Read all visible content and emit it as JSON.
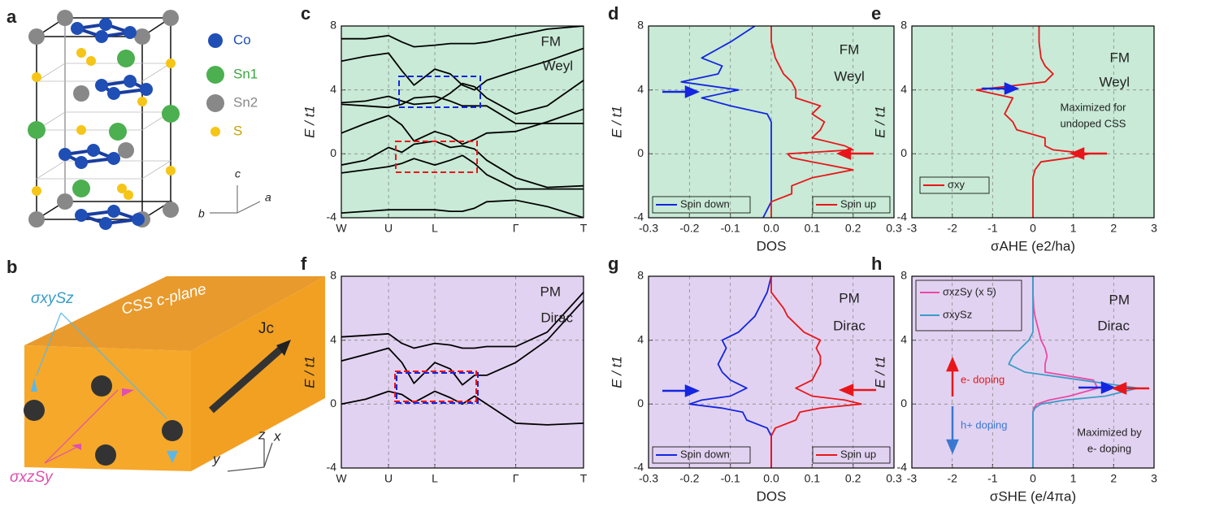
{
  "chart_data": [
    {
      "type": "line",
      "panel": "c",
      "ylabel": "E / t1",
      "background": "#c8ead6",
      "grid": true,
      "xlim": [
        0,
        1
      ],
      "xticks": [
        {
          "value": 0,
          "label": "W"
        },
        {
          "value": 0.195,
          "label": "U"
        },
        {
          "value": 0.386,
          "label": "L"
        },
        {
          "value": 0.72,
          "label": "Γ"
        },
        {
          "value": 1,
          "label": "T"
        }
      ],
      "ylim": [
        -4,
        8
      ],
      "yticks": [
        -4,
        0,
        4,
        8
      ],
      "annotations": [
        "FM",
        "Weyl"
      ],
      "x": [
        0,
        0.1,
        0.195,
        0.25,
        0.3,
        0.386,
        0.45,
        0.5,
        0.55,
        0.6,
        0.72,
        0.85,
        1
      ],
      "series": [
        {
          "color": "#000",
          "values": [
            7.2,
            7.2,
            7.4,
            7.0,
            6.7,
            6.8,
            6.9,
            6.9,
            6.9,
            7.0,
            7.4,
            7.8,
            8.0
          ]
        },
        {
          "color": "#000",
          "values": [
            5.8,
            6.1,
            6.3,
            5.2,
            4.3,
            5.3,
            5.0,
            4.3,
            4.0,
            4.6,
            5.2,
            5.8,
            6.6
          ]
        },
        {
          "color": "#000",
          "values": [
            3.2,
            3.3,
            3.6,
            3.3,
            3.1,
            3.2,
            3.8,
            4.4,
            4.2,
            3.5,
            2.5,
            3.0,
            4.6
          ]
        },
        {
          "color": "#000",
          "values": [
            3.1,
            3.0,
            2.9,
            3.1,
            3.5,
            3.6,
            3.3,
            3.0,
            3.0,
            3.0,
            1.9,
            1.9,
            1.9
          ]
        },
        {
          "color": "#000",
          "values": [
            1.3,
            1.9,
            2.4,
            1.8,
            0.8,
            1.4,
            1.1,
            0.6,
            0.9,
            1.3,
            1.4,
            2.0,
            2.8
          ]
        },
        {
          "color": "#000",
          "values": [
            -0.7,
            -0.4,
            0.4,
            0.1,
            0.6,
            0.8,
            0.4,
            0.5,
            0.3,
            -0.4,
            -1.5,
            -2.1,
            -2.0
          ]
        },
        {
          "color": "#000",
          "values": [
            -1.2,
            -1.0,
            -0.8,
            -0.6,
            -0.3,
            -0.7,
            -0.4,
            -0.1,
            -0.6,
            -1.3,
            -2.2,
            -2.2,
            -2.2
          ]
        },
        {
          "color": "#000",
          "values": [
            -3.7,
            -3.6,
            -3.5,
            -3.5,
            -3.5,
            -3.5,
            -3.6,
            -3.6,
            -3.4,
            -3.0,
            -2.9,
            -3.3,
            -4.0
          ]
        }
      ]
    },
    {
      "type": "line",
      "panel": "d",
      "xlabel": "DOS",
      "ylabel": "E / t1",
      "background": "#c8ead6",
      "grid": true,
      "legend": "bottom",
      "xlim": [
        -0.3,
        0.3
      ],
      "xticks": [
        -0.3,
        -0.2,
        -0.1,
        {
          "value": 0,
          "label": "0.0"
        },
        0.1,
        0.2,
        0.3
      ],
      "ylim": [
        -4,
        8
      ],
      "yticks": [
        -4,
        0,
        4,
        8
      ],
      "annotations": [
        "FM",
        "Weyl"
      ],
      "y": [
        -4,
        -3,
        -2.5,
        -2,
        -1.5,
        -1,
        -0.5,
        -0.25,
        0,
        0.25,
        0.5,
        1,
        1.5,
        2,
        2.5,
        3,
        3.5,
        4,
        4.5,
        5,
        5.5,
        6,
        7,
        8
      ],
      "series": [
        {
          "name": "Spin down",
          "color": "#1426e0",
          "values": [
            -0.02,
            0,
            0,
            0,
            0,
            0,
            0,
            0,
            0,
            0,
            0,
            0,
            0,
            0,
            -0.01,
            -0.1,
            -0.17,
            -0.08,
            -0.22,
            -0.13,
            -0.12,
            -0.17,
            -0.1,
            -0.04
          ]
        },
        {
          "name": "Spin up",
          "color": "#e8161a",
          "values": [
            0,
            0,
            0.05,
            0.05,
            0.1,
            0.2,
            0.1,
            0.05,
            0.04,
            0.2,
            0.18,
            0.1,
            0.12,
            0.13,
            0.1,
            0.12,
            0.06,
            0.06,
            0.05,
            0.03,
            0.02,
            0.01,
            0,
            0
          ]
        }
      ]
    },
    {
      "type": "line",
      "panel": "e",
      "xlabel": "σAHE (e2/ha)",
      "ylabel": "E / t1",
      "background": "#c8ead6",
      "grid": true,
      "legend": "lower left",
      "xlim": [
        -3,
        3
      ],
      "xticks": [
        -3,
        -2,
        -1,
        0,
        1,
        2,
        3
      ],
      "ylim": [
        -4,
        8
      ],
      "yticks": [
        -4,
        0,
        4,
        8
      ],
      "annotations": [
        "FM",
        "Weyl",
        "Maximized for",
        "undoped CSS"
      ],
      "y": [
        -4,
        -3,
        -2.5,
        -2,
        -1.5,
        -1,
        -0.5,
        -0.25,
        0,
        0.25,
        0.5,
        1,
        1.5,
        2,
        2.5,
        3,
        3.5,
        4,
        4.5,
        5,
        5.5,
        6,
        7,
        8
      ],
      "series": [
        {
          "name": "σxy",
          "color": "#e8161a",
          "values": [
            0,
            0,
            0,
            0,
            0,
            0.05,
            0.2,
            0.9,
            1.4,
            0.5,
            0.3,
            0.3,
            -0.4,
            -0.5,
            -0.7,
            -0.6,
            -0.5,
            -1.4,
            0.3,
            0.5,
            0.3,
            0.2,
            0.15,
            0.15
          ]
        }
      ]
    },
    {
      "type": "line",
      "panel": "f",
      "ylabel": "E / t1",
      "background": "#e2d2f1",
      "grid": true,
      "xlim": [
        0,
        1
      ],
      "xticks": [
        {
          "value": 0,
          "label": "W"
        },
        {
          "value": 0.195,
          "label": "U"
        },
        {
          "value": 0.386,
          "label": "L"
        },
        {
          "value": 0.72,
          "label": "Γ"
        },
        {
          "value": 1,
          "label": "T"
        }
      ],
      "ylim": [
        -4,
        8
      ],
      "yticks": [
        -4,
        0,
        4,
        8
      ],
      "annotations": [
        "PM",
        "Dirac"
      ],
      "x": [
        0,
        0.1,
        0.195,
        0.25,
        0.3,
        0.386,
        0.45,
        0.5,
        0.55,
        0.6,
        0.72,
        0.85,
        1
      ],
      "series": [
        {
          "color": "#000",
          "values": [
            4.2,
            4.3,
            4.4,
            3.8,
            3.5,
            3.8,
            3.7,
            3.5,
            3.5,
            3.6,
            3.6,
            4.5,
            7.0
          ]
        },
        {
          "color": "#000",
          "values": [
            2.7,
            3.1,
            3.5,
            2.6,
            1.3,
            2.6,
            2.2,
            1.2,
            1.8,
            1.8,
            2.6,
            4.0,
            6.5
          ]
        },
        {
          "color": "#000",
          "values": [
            0,
            0.3,
            0.8,
            0.6,
            0.1,
            0.8,
            0.4,
            0,
            0.5,
            0,
            -1.2,
            -1.3,
            -1.2
          ]
        }
      ]
    },
    {
      "type": "line",
      "panel": "g",
      "xlabel": "DOS",
      "ylabel": "E / t1",
      "background": "#e2d2f1",
      "grid": true,
      "legend": "bottom",
      "xlim": [
        -0.3,
        0.3
      ],
      "xticks": [
        -0.3,
        -0.2,
        -0.1,
        {
          "value": 0,
          "label": "0.0"
        },
        0.1,
        0.2,
        0.3
      ],
      "ylim": [
        -4,
        8
      ],
      "yticks": [
        -4,
        0,
        4,
        8
      ],
      "annotations": [
        "PM",
        "Dirac"
      ],
      "y": [
        -4,
        -3,
        -2.5,
        -2,
        -1.5,
        -1,
        -0.5,
        -0.25,
        0,
        0.25,
        0.5,
        1,
        1.5,
        2,
        2.5,
        3,
        3.5,
        4,
        4.5,
        5,
        5.5,
        6,
        7,
        8
      ],
      "series": [
        {
          "name": "Spin down",
          "color": "#1426e0",
          "values": [
            0,
            0,
            0,
            0,
            -0.01,
            -0.06,
            -0.07,
            -0.12,
            -0.2,
            -0.17,
            -0.1,
            -0.06,
            -0.1,
            -0.12,
            -0.13,
            -0.12,
            -0.11,
            -0.12,
            -0.08,
            -0.06,
            -0.04,
            -0.03,
            -0.01,
            0
          ]
        },
        {
          "name": "Spin up",
          "color": "#e8161a",
          "values": [
            0,
            0,
            0,
            0,
            0.01,
            0.06,
            0.07,
            0.12,
            0.22,
            0.18,
            0.1,
            0.06,
            0.1,
            0.11,
            0.12,
            0.12,
            0.11,
            0.12,
            0.08,
            0.06,
            0.04,
            0.03,
            0,
            0
          ]
        }
      ]
    },
    {
      "type": "line",
      "panel": "h",
      "xlabel": "σSHE (e/4πa)",
      "ylabel": "E / t1",
      "background": "#e2d2f1",
      "grid": true,
      "legend": "upper left",
      "xlim": [
        -3,
        3
      ],
      "xticks": [
        -3,
        -2,
        -1,
        0,
        1,
        2,
        3
      ],
      "ylim": [
        -4,
        8
      ],
      "yticks": [
        -4,
        0,
        4,
        8
      ],
      "annotations": [
        "PM",
        "Dirac",
        "Maximized by",
        "e- doping",
        "e- doping",
        "h+ doping"
      ],
      "y": [
        -4,
        -3,
        -2.5,
        -2,
        -1.5,
        -1,
        -0.5,
        -0.25,
        0,
        0.25,
        0.5,
        1,
        1.5,
        2,
        2.5,
        3,
        3.5,
        4,
        4.5,
        5,
        5.5,
        6,
        7,
        8
      ],
      "series": [
        {
          "name": "σxzSy (x 5)",
          "color": "#e84aa6",
          "values": [
            0,
            0,
            0,
            0,
            0,
            0,
            0,
            0.02,
            0.1,
            0.4,
            0.9,
            1.6,
            1.5,
            0.3,
            0.3,
            0.35,
            0.3,
            0.2,
            0.15,
            0.1,
            0.05,
            0.02,
            0,
            0
          ]
        },
        {
          "name": "σxySz",
          "color": "#3a9cc8",
          "values": [
            0,
            0,
            0,
            0,
            0,
            0,
            0,
            0.05,
            0.2,
            0.8,
            1.8,
            2.6,
            1.2,
            -0.2,
            -0.6,
            -0.5,
            -0.3,
            -0.1,
            0,
            0,
            0,
            0,
            0,
            0
          ]
        }
      ]
    }
  ],
  "diagram": {
    "panels": [
      "a",
      "b"
    ],
    "legend": [
      "Co",
      "Sn1",
      "Sn2",
      "S"
    ],
    "axes_a": [
      "c",
      "b",
      "a"
    ],
    "plane": "CSS c-plane",
    "current": "Jc",
    "sigma_z": "σxySz",
    "sigma_y": "σxzSy",
    "axes_b": [
      "z",
      "x",
      "y"
    ]
  }
}
